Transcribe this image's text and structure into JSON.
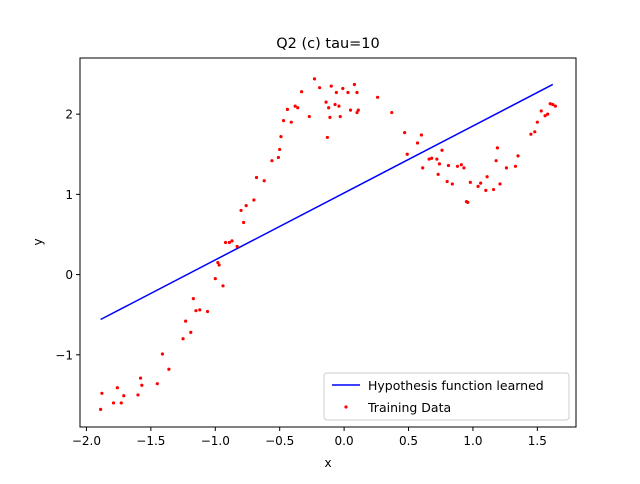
{
  "chart_data": {
    "type": "scatter",
    "title": "Q2 (c)  tau=10",
    "xlabel": "x",
    "ylabel": "y",
    "xlim": [
      -2.05,
      1.8
    ],
    "ylim": [
      -1.9,
      2.7
    ],
    "xticks": [
      -2.0,
      -1.5,
      -1.0,
      -0.5,
      0.0,
      0.5,
      1.0,
      1.5
    ],
    "xtick_labels": [
      "−2.0",
      "−1.5",
      "−1.0",
      "−0.5",
      "0.0",
      "0.5",
      "1.0",
      "1.5"
    ],
    "yticks": [
      -1,
      0,
      1,
      2
    ],
    "ytick_labels": [
      "−1",
      "0",
      "1",
      "2"
    ],
    "grid": false,
    "legend_position": "lower-right",
    "series": [
      {
        "name": "Hypothesis function learned",
        "kind": "line",
        "color": "#0000ff",
        "x": [
          -1.89,
          1.62
        ],
        "y": [
          -0.56,
          2.37
        ]
      },
      {
        "name": "Training Data",
        "kind": "scatter",
        "color": "#ff0000",
        "x": [
          -1.89,
          -1.88,
          -1.79,
          -1.76,
          -1.73,
          -1.71,
          -1.6,
          -1.58,
          -1.57,
          -1.45,
          -1.41,
          -1.36,
          -1.25,
          -1.23,
          -1.19,
          -1.17,
          -1.15,
          -1.12,
          -1.06,
          -1.0,
          -0.98,
          -0.97,
          -0.94,
          -0.92,
          -0.89,
          -0.87,
          -0.83,
          -0.8,
          -0.78,
          -0.76,
          -0.7,
          -0.68,
          -0.62,
          -0.56,
          -0.51,
          -0.5,
          -0.49,
          -0.47,
          -0.44,
          -0.41,
          -0.38,
          -0.36,
          -0.33,
          -0.27,
          -0.23,
          -0.19,
          -0.14,
          -0.13,
          -0.12,
          -0.11,
          -0.1,
          -0.07,
          -0.06,
          -0.04,
          -0.03,
          -0.01,
          0.03,
          0.05,
          0.08,
          0.1,
          0.1,
          0.11,
          0.26,
          0.37,
          0.47,
          0.49,
          0.57,
          0.6,
          0.61,
          0.66,
          0.68,
          0.72,
          0.73,
          0.74,
          0.76,
          0.8,
          0.81,
          0.84,
          0.88,
          0.91,
          0.93,
          0.95,
          0.96,
          0.98,
          1.04,
          1.06,
          1.1,
          1.11,
          1.16,
          1.18,
          1.19,
          1.21,
          1.26,
          1.33,
          1.35,
          1.45,
          1.48,
          1.5,
          1.53,
          1.56,
          1.58,
          1.6,
          1.62,
          1.64
        ],
        "y": [
          -1.68,
          -1.48,
          -1.6,
          -1.41,
          -1.6,
          -1.51,
          -1.5,
          -1.29,
          -1.38,
          -1.36,
          -0.99,
          -1.18,
          -0.8,
          -0.58,
          -0.72,
          -0.3,
          -0.45,
          -0.44,
          -0.46,
          -0.05,
          0.15,
          0.12,
          -0.14,
          0.4,
          0.4,
          0.42,
          0.35,
          0.8,
          0.65,
          0.86,
          0.93,
          1.21,
          1.17,
          1.42,
          1.46,
          1.56,
          1.72,
          1.92,
          2.06,
          1.9,
          2.1,
          2.08,
          2.28,
          1.97,
          2.44,
          2.33,
          2.15,
          1.71,
          2.08,
          1.96,
          2.35,
          2.12,
          2.27,
          2.1,
          1.97,
          2.32,
          2.27,
          2.05,
          2.37,
          2.27,
          2.02,
          2.05,
          2.21,
          2.02,
          1.77,
          1.5,
          1.64,
          1.74,
          1.33,
          1.44,
          1.45,
          1.44,
          1.25,
          1.38,
          1.55,
          1.16,
          1.36,
          1.13,
          1.35,
          1.37,
          1.33,
          0.91,
          0.9,
          1.15,
          1.1,
          1.14,
          1.05,
          1.22,
          1.06,
          1.42,
          1.58,
          1.13,
          1.33,
          1.35,
          1.48,
          1.75,
          1.78,
          1.9,
          2.04,
          1.98,
          2.0,
          2.13,
          2.12,
          2.1
        ]
      }
    ]
  }
}
